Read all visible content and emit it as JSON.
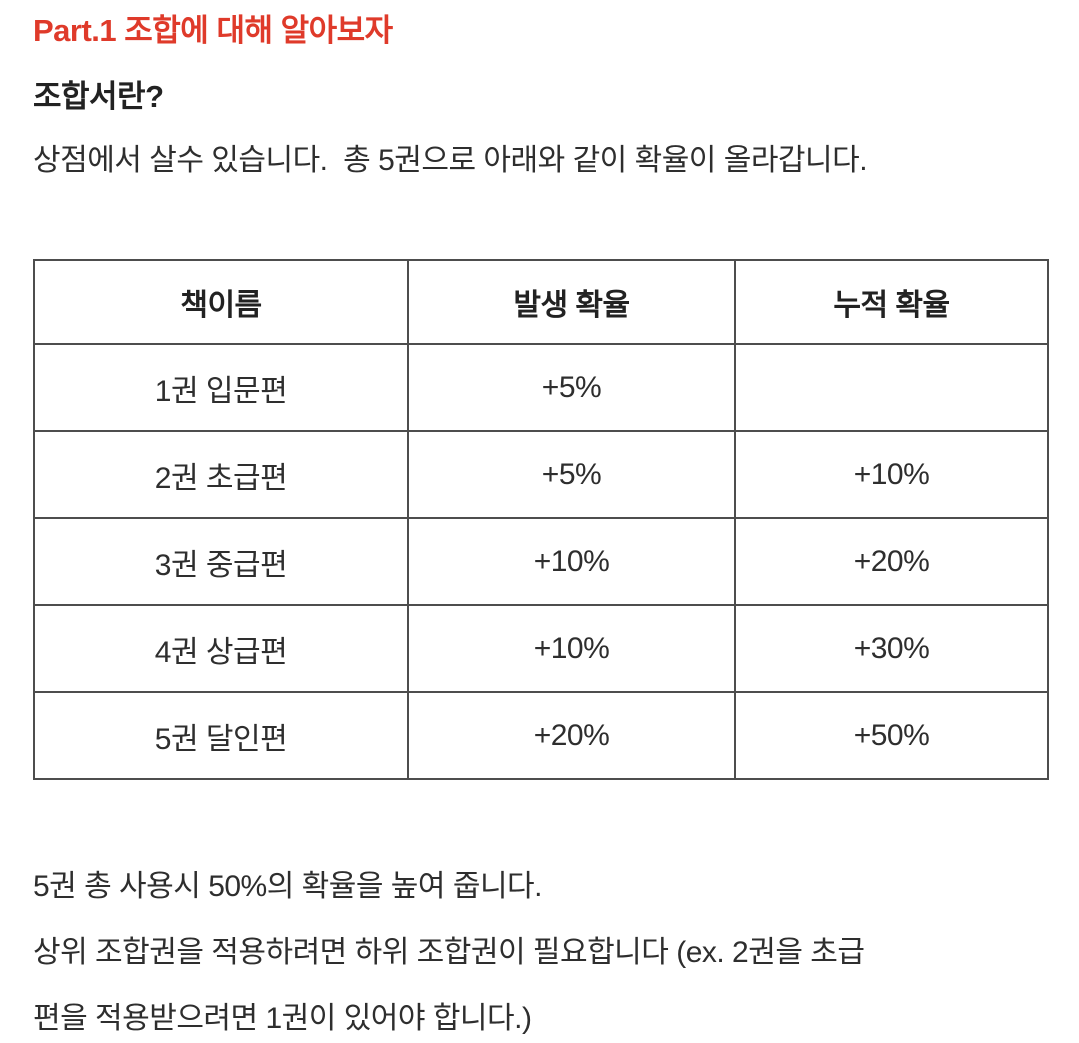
{
  "colors": {
    "heading_red": "#df3a2a",
    "body_text": "#2e2e2e",
    "table_border": "#4d4d4d",
    "background": "#ffffff"
  },
  "heading": {
    "part_title": "Part.1 조합에 대해 알아보자",
    "sub_title": "조합서란?"
  },
  "intro": {
    "text": "상점에서 살수 있습니다.  총 5권으로 아래와 같이 확율이 올라갑니다."
  },
  "prob_table": {
    "headers": [
      "책이름",
      "발생 확율",
      "누적 확율"
    ],
    "rows": [
      [
        "1권 입문편",
        "+5%",
        ""
      ],
      [
        "2권 초급편",
        "+5%",
        "+10%"
      ],
      [
        "3권 중급편",
        "+10%",
        "+20%"
      ],
      [
        "4권 상급편",
        "+10%",
        "+30%"
      ],
      [
        "5권 달인편",
        "+20%",
        "+50%"
      ]
    ]
  },
  "notes": {
    "line1": "5권 총 사용시 50%의 확율을 높여 줍니다.",
    "line2": "상위 조합권을 적용하려면 하위 조합권이 필요합니다 (ex. 2권을 초급",
    "line3": "편을 적용받으려면 1권이 있어야 합니다.)"
  }
}
